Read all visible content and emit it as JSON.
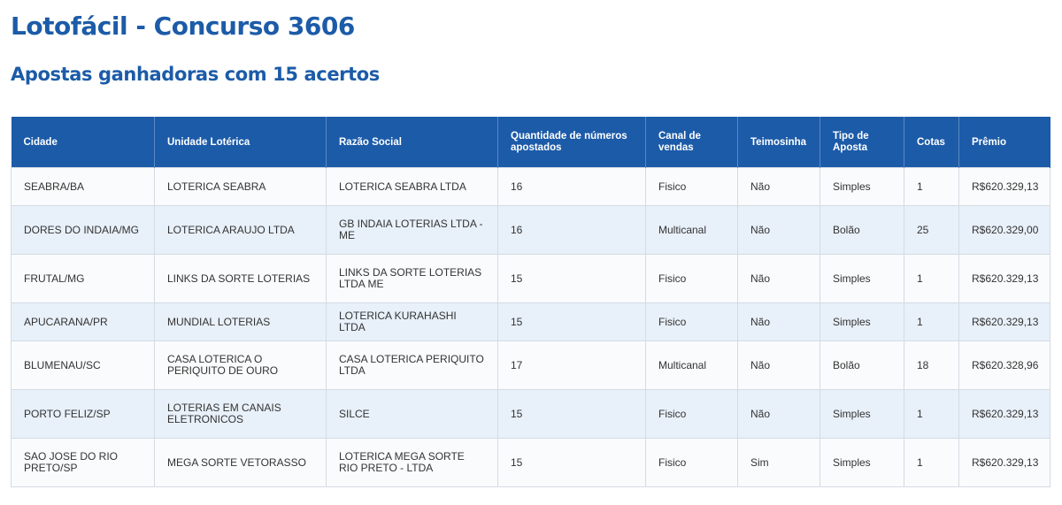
{
  "header": {
    "title": "Lotofácil - Concurso 3606",
    "subtitle": "Apostas ganhadoras com 15 acertos"
  },
  "table": {
    "columns": [
      "Cidade",
      "Unidade Lotérica",
      "Razão Social",
      "Quantidade de números apostados",
      "Canal de vendas",
      "Teimosinha",
      "Tipo de Aposta",
      "Cotas",
      "Prêmio"
    ],
    "rows": [
      [
        "SEABRA/BA",
        "LOTERICA SEABRA",
        "LOTERICA SEABRA LTDA",
        "16",
        "Fisico",
        "Não",
        "Simples",
        "1",
        "R$620.329,13"
      ],
      [
        "DORES DO INDAIA/MG",
        "LOTERICA ARAUJO LTDA",
        "GB INDAIA LOTERIAS LTDA - ME",
        "16",
        "Multicanal",
        "Não",
        "Bolão",
        "25",
        "R$620.329,00"
      ],
      [
        "FRUTAL/MG",
        "LINKS DA SORTE LOTERIAS",
        "LINKS DA SORTE LOTERIAS LTDA ME",
        "15",
        "Fisico",
        "Não",
        "Simples",
        "1",
        "R$620.329,13"
      ],
      [
        "APUCARANA/PR",
        "MUNDIAL LOTERIAS",
        "LOTERICA KURAHASHI LTDA",
        "15",
        "Fisico",
        "Não",
        "Simples",
        "1",
        "R$620.329,13"
      ],
      [
        "BLUMENAU/SC",
        "CASA LOTERICA O PERIQUITO DE OURO",
        "CASA LOTERICA PERIQUITO LTDA",
        "17",
        "Multicanal",
        "Não",
        "Bolão",
        "18",
        "R$620.328,96"
      ],
      [
        "PORTO FELIZ/SP",
        "LOTERIAS EM CANAIS ELETRONICOS",
        "SILCE",
        "15",
        "Fisico",
        "Não",
        "Simples",
        "1",
        "R$620.329,13"
      ],
      [
        "SAO JOSE DO RIO PRETO/SP",
        "MEGA SORTE VETORASSO",
        "LOTERICA MEGA SORTE RIO PRETO - LTDA",
        "15",
        "Fisico",
        "Sim",
        "Simples",
        "1",
        "R$620.329,13"
      ]
    ]
  },
  "colors": {
    "accent": "#1c5ba8",
    "row_alt": "#e8f0f9",
    "row": "#fafbfc"
  }
}
